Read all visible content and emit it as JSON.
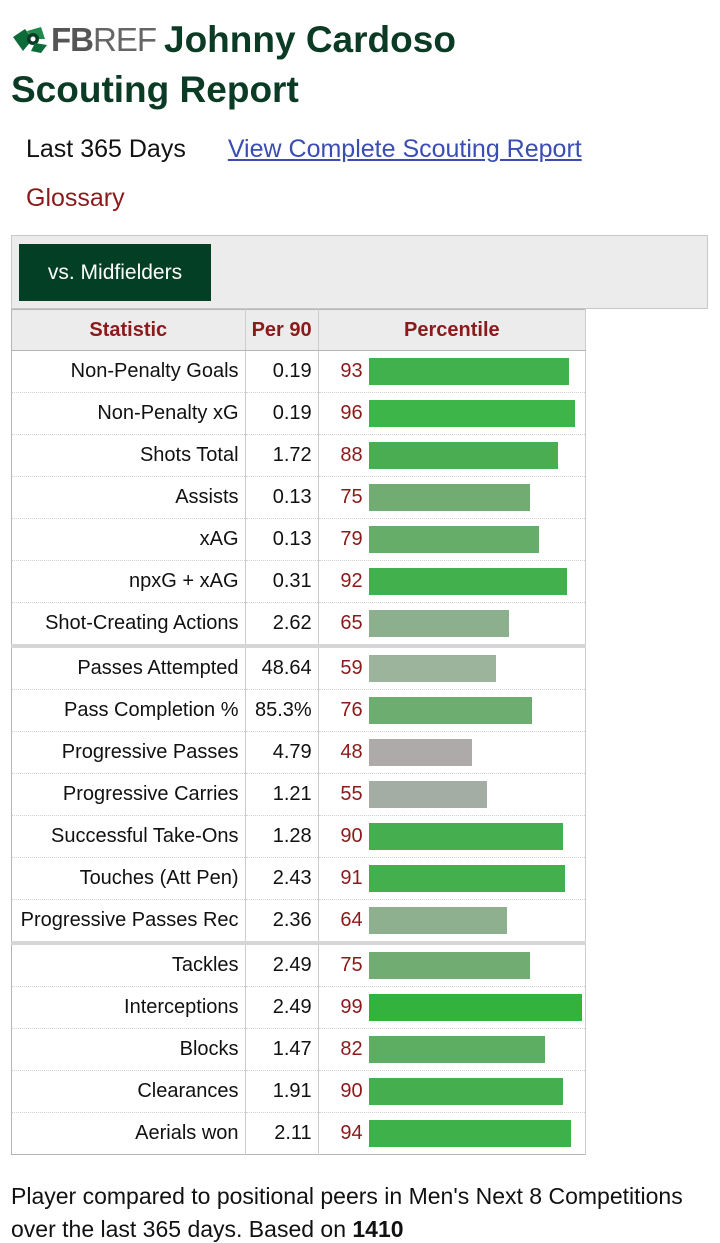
{
  "header": {
    "logo_fb": "FB",
    "logo_ref": "REF",
    "player_name": "Johnny Cardoso",
    "report_title": "Scouting Report"
  },
  "period": "Last 365 Days",
  "full_report_link": "View Complete Scouting Report",
  "glossary": "Glossary",
  "position_filter": "vs. Midfielders",
  "table": {
    "headers": [
      "Statistic",
      "Per 90",
      "Percentile"
    ],
    "rows": [
      {
        "stat": "Non-Penalty Goals",
        "per90": "0.19",
        "pct": "93",
        "color": "#40b14c"
      },
      {
        "stat": "Non-Penalty xG",
        "per90": "0.19",
        "pct": "96",
        "color": "#3db548"
      },
      {
        "stat": "Shots Total",
        "per90": "1.72",
        "pct": "88",
        "color": "#4aad52"
      },
      {
        "stat": "Assists",
        "per90": "0.13",
        "pct": "75",
        "color": "#71ad73"
      },
      {
        "stat": "xAG",
        "per90": "0.13",
        "pct": "79",
        "color": "#66ad69"
      },
      {
        "stat": "npxG + xAG",
        "per90": "0.31",
        "pct": "92",
        "color": "#42b04c"
      },
      {
        "stat": "Shot-Creating Actions",
        "per90": "2.62",
        "pct": "65",
        "color": "#8cb08d"
      },
      {
        "stat": "Passes Attempted",
        "per90": "48.64",
        "pct": "59",
        "color": "#9cb39c"
      },
      {
        "stat": "Pass Completion %",
        "per90": "85.3%",
        "pct": "76",
        "color": "#6dad70"
      },
      {
        "stat": "Progressive Passes",
        "per90": "4.79",
        "pct": "48",
        "color": "#afaaaa"
      },
      {
        "stat": "Progressive Carries",
        "per90": "1.21",
        "pct": "55",
        "color": "#a4ada3"
      },
      {
        "stat": "Successful Take-Ons",
        "per90": "1.28",
        "pct": "90",
        "color": "#45af4f"
      },
      {
        "stat": "Touches (Att Pen)",
        "per90": "2.43",
        "pct": "91",
        "color": "#43b04d"
      },
      {
        "stat": "Progressive Passes Rec",
        "per90": "2.36",
        "pct": "64",
        "color": "#8eb08f"
      },
      {
        "stat": "Tackles",
        "per90": "2.49",
        "pct": "75",
        "color": "#71ad73"
      },
      {
        "stat": "Interceptions",
        "per90": "2.49",
        "pct": "99",
        "color": "#33b33e"
      },
      {
        "stat": "Blocks",
        "per90": "1.47",
        "pct": "82",
        "color": "#5dae62"
      },
      {
        "stat": "Clearances",
        "per90": "1.91",
        "pct": "90",
        "color": "#45af4f"
      },
      {
        "stat": "Aerials won",
        "per90": "2.11",
        "pct": "94",
        "color": "#3fb14a"
      }
    ],
    "group_starts": [
      7,
      14
    ]
  },
  "footer": {
    "text": "Player compared to positional peers in Men's Next 8 Competitions over the last 365 days. Based on",
    "count": "1410"
  }
}
